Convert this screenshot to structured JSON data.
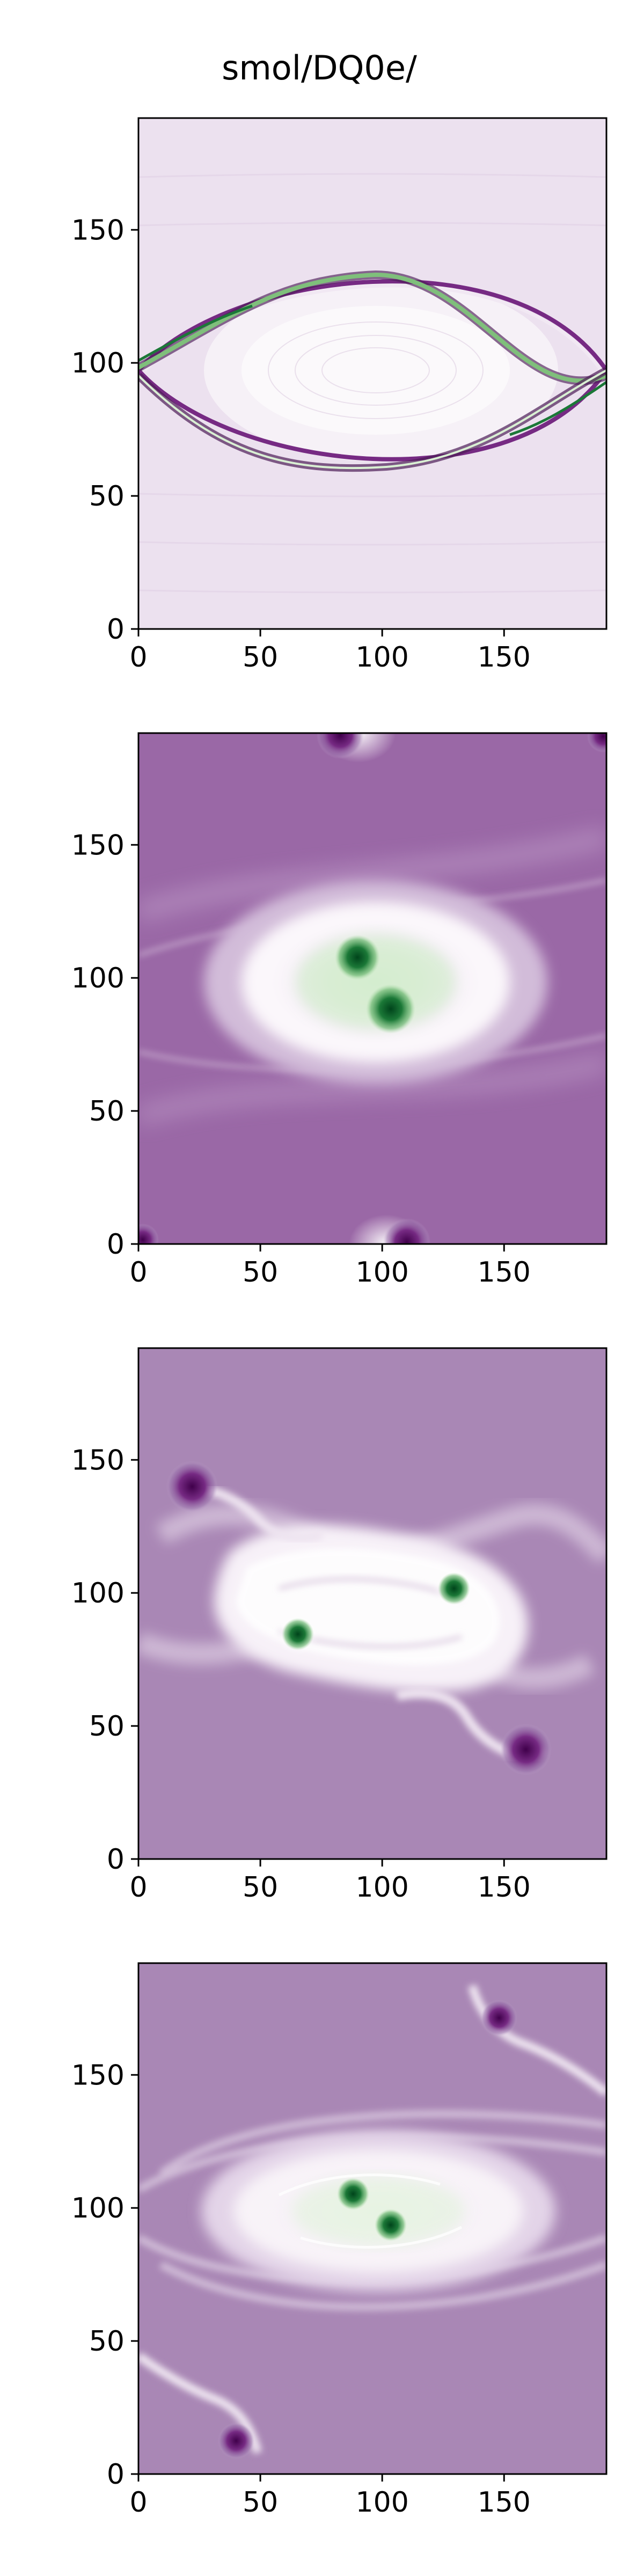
{
  "figure": {
    "title": "smol/DQ0e/"
  },
  "colors": {
    "background": "#ffffff",
    "axes": "#000000",
    "colormap_purple": "#8e4d9a",
    "colormap_light": "#f7f2f8",
    "colormap_green": "#0c4f23"
  },
  "chart_data": [
    {
      "type": "heatmap",
      "title": "",
      "xlabel": "",
      "ylabel": "",
      "colormap": "PRGn",
      "xlim": [
        0,
        192
      ],
      "ylim": [
        0,
        192
      ],
      "xticks": [
        0,
        50,
        100,
        150
      ],
      "yticks": [
        0,
        50,
        100,
        150
      ],
      "description_features": [
        {
          "kind": "background",
          "value": 0.03
        },
        {
          "kind": "eye-shape-wave",
          "center": [
            96,
            98
          ],
          "rx": 90,
          "ry": 34
        },
        {
          "kind": "thin-band-sine",
          "amplitude": 32
        }
      ]
    },
    {
      "type": "heatmap",
      "title": "",
      "xlabel": "",
      "ylabel": "",
      "colormap": "PRGn",
      "xlim": [
        0,
        192
      ],
      "ylim": [
        0,
        192
      ],
      "xticks": [
        0,
        50,
        100,
        150
      ],
      "yticks": [
        0,
        50,
        100,
        150
      ],
      "description_features": [
        {
          "kind": "background",
          "value": -0.55
        },
        {
          "kind": "light-ellipse",
          "center": [
            96,
            98
          ],
          "rx": 60,
          "ry": 30
        },
        {
          "kind": "vortex",
          "center": [
            90,
            107
          ],
          "sign": "positive"
        },
        {
          "kind": "vortex",
          "center": [
            104,
            88
          ],
          "sign": "positive"
        },
        {
          "kind": "vortex",
          "center": [
            88,
            192
          ],
          "sign": "negative"
        },
        {
          "kind": "vortex",
          "center": [
            104,
            0
          ],
          "sign": "negative"
        }
      ]
    },
    {
      "type": "heatmap",
      "title": "",
      "xlabel": "",
      "ylabel": "",
      "colormap": "PRGn",
      "xlim": [
        0,
        192
      ],
      "ylim": [
        0,
        192
      ],
      "xticks": [
        0,
        50,
        100,
        150
      ],
      "yticks": [
        0,
        50,
        100,
        150
      ],
      "description_features": [
        {
          "kind": "background",
          "value": -0.4
        },
        {
          "kind": "light-s-band",
          "center": [
            96,
            98
          ]
        },
        {
          "kind": "vortex",
          "center": [
            130,
            110
          ],
          "sign": "positive"
        },
        {
          "kind": "vortex",
          "center": [
            66,
            83
          ],
          "sign": "positive"
        },
        {
          "kind": "vortex",
          "center": [
            30,
            150
          ],
          "sign": "negative"
        },
        {
          "kind": "vortex",
          "center": [
            158,
            47
          ],
          "sign": "negative"
        }
      ]
    },
    {
      "type": "heatmap",
      "title": "",
      "xlabel": "",
      "ylabel": "",
      "colormap": "PRGn",
      "xlim": [
        0,
        192
      ],
      "ylim": [
        0,
        192
      ],
      "xticks": [
        0,
        50,
        100,
        150
      ],
      "yticks": [
        0,
        50,
        100,
        150
      ],
      "description_features": [
        {
          "kind": "background",
          "value": -0.4
        },
        {
          "kind": "light-ellipse",
          "center": [
            96,
            98
          ],
          "rx": 62,
          "ry": 26
        },
        {
          "kind": "vortex",
          "center": [
            88,
            105
          ],
          "sign": "positive"
        },
        {
          "kind": "vortex",
          "center": [
            104,
            88
          ],
          "sign": "positive"
        },
        {
          "kind": "vortex",
          "center": [
            148,
            172
          ],
          "sign": "negative"
        },
        {
          "kind": "vortex",
          "center": [
            40,
            22
          ],
          "sign": "negative"
        }
      ]
    }
  ]
}
